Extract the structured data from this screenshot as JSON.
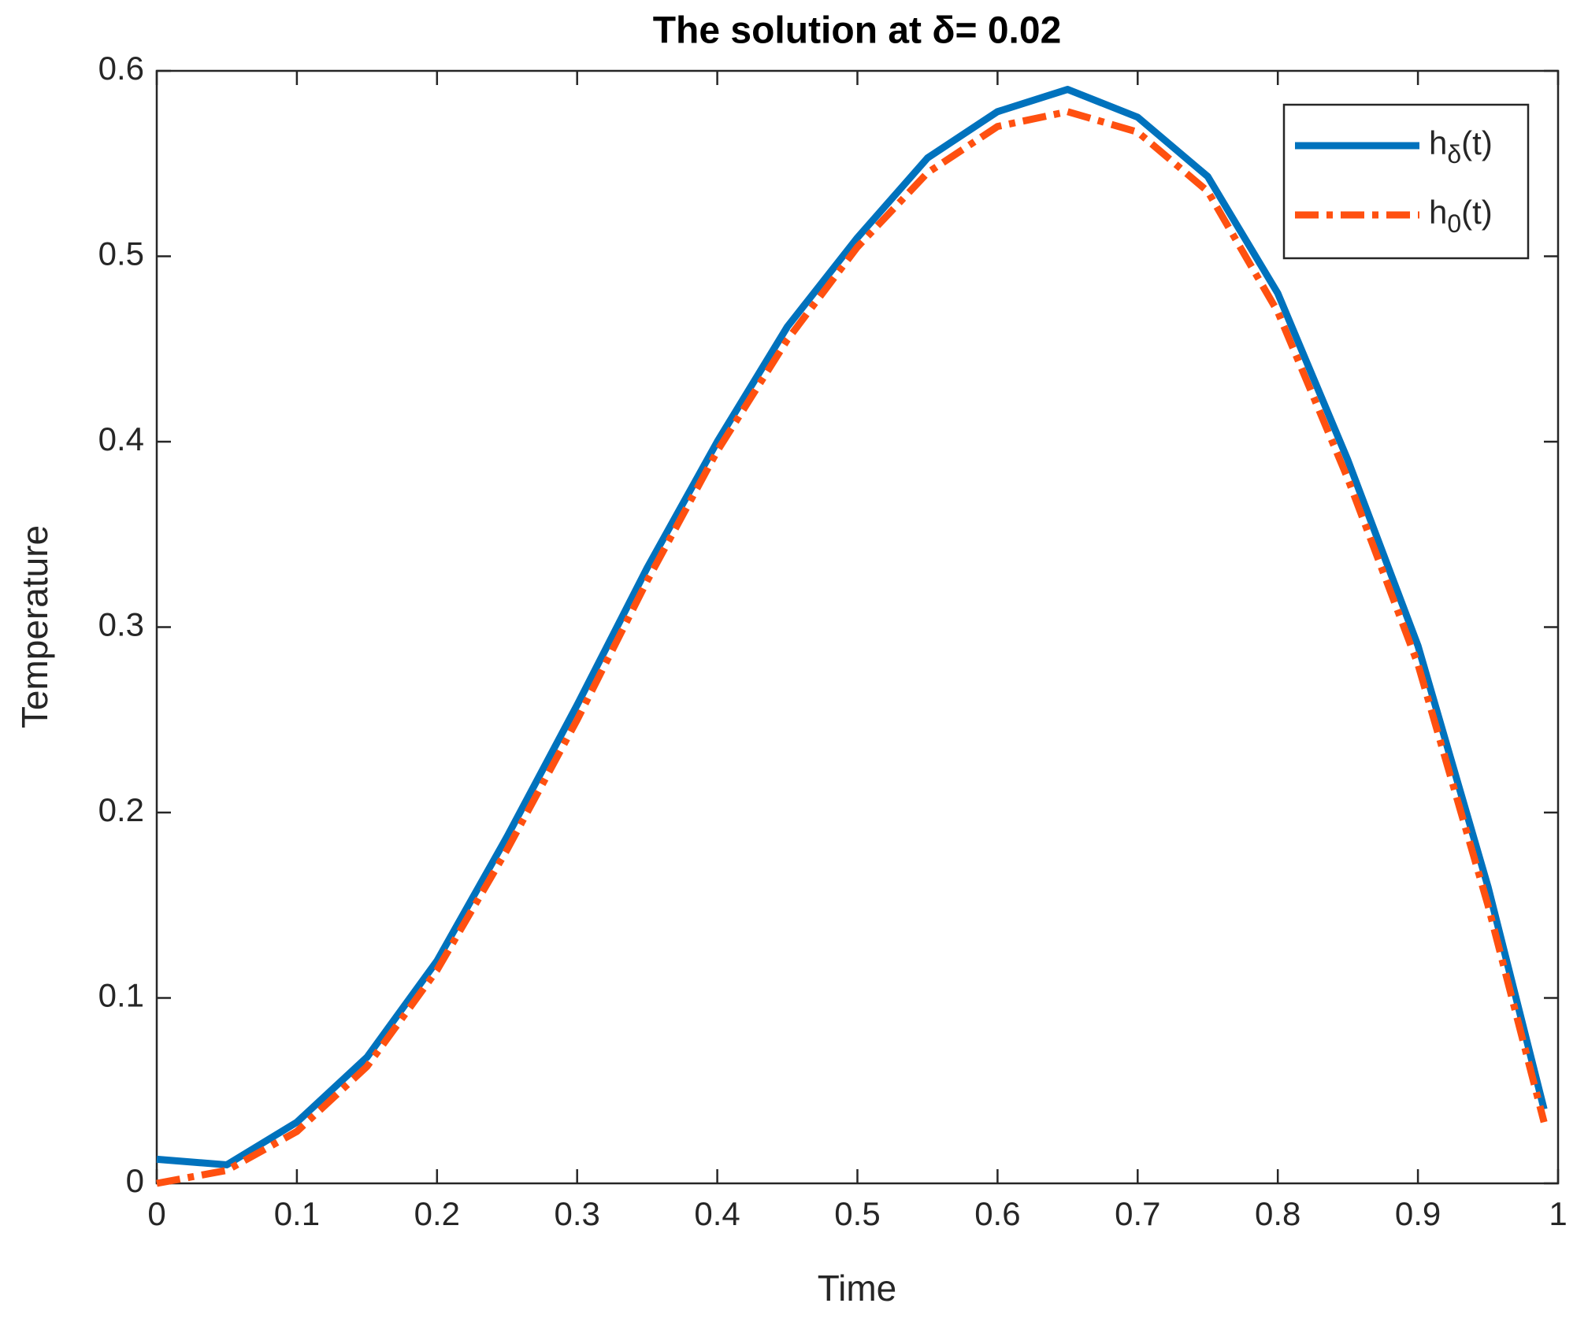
{
  "chart_data": {
    "type": "line",
    "title": "The solution at δ= 0.02",
    "xlabel": "Time",
    "ylabel": "Temperature",
    "x": [
      0,
      0.05,
      0.1,
      0.15,
      0.2,
      0.25,
      0.3,
      0.35,
      0.4,
      0.45,
      0.5,
      0.55,
      0.6,
      0.65,
      0.7,
      0.75,
      0.8,
      0.85,
      0.9,
      0.95,
      0.99
    ],
    "series": [
      {
        "name": "hδ(t)",
        "color": "#0072bd",
        "dash": "solid",
        "values": [
          0.013,
          0.01,
          0.033,
          0.068,
          0.12,
          0.187,
          0.258,
          0.332,
          0.4,
          0.462,
          0.51,
          0.553,
          0.578,
          0.59,
          0.575,
          0.543,
          0.48,
          0.39,
          0.29,
          0.16,
          0.04
        ]
      },
      {
        "name": "h0(t)",
        "color": "#ff5010",
        "dash": "dashdot",
        "values": [
          0,
          0.007,
          0.028,
          0.063,
          0.115,
          0.18,
          0.25,
          0.325,
          0.395,
          0.455,
          0.505,
          0.545,
          0.57,
          0.578,
          0.567,
          0.535,
          0.47,
          0.38,
          0.28,
          0.15,
          0.033
        ]
      }
    ],
    "xlim": [
      0,
      1
    ],
    "ylim": [
      0,
      0.6
    ],
    "xticks": [
      0,
      0.1,
      0.2,
      0.3,
      0.4,
      0.5,
      0.6,
      0.7,
      0.8,
      0.9,
      1
    ],
    "yticks": [
      0,
      0.1,
      0.2,
      0.3,
      0.4,
      0.5,
      0.6
    ],
    "legend": "top-right"
  }
}
